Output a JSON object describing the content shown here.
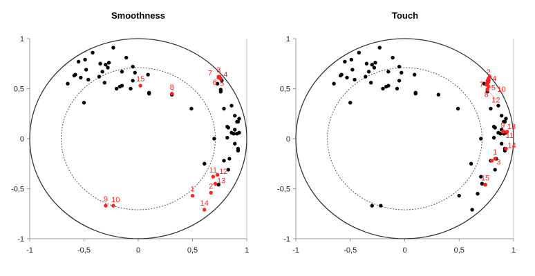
{
  "chart_data": [
    {
      "type": "scatter",
      "title": "Smoothness",
      "xlim": [
        -1,
        1
      ],
      "ylim": [
        -1,
        1
      ],
      "x_ticks": [
        "-1",
        "-0,5",
        "0",
        "0,5",
        "1"
      ],
      "y_ticks": [
        "1",
        "0,5",
        "0",
        "-0,5",
        "-1"
      ],
      "outer_circle_radius": 1,
      "inner_circle_radius": 0.71,
      "colors": {
        "active": "#000000",
        "supplementary": "#ff2020"
      },
      "active_points": [
        [
          -0.23,
          0.91
        ],
        [
          -0.42,
          0.86
        ],
        [
          -0.49,
          0.79
        ],
        [
          -0.55,
          0.77
        ],
        [
          -0.27,
          0.76
        ],
        [
          -0.35,
          0.75
        ],
        [
          -0.3,
          0.74
        ],
        [
          -0.28,
          0.71
        ],
        [
          -0.11,
          0.81
        ],
        [
          -0.05,
          0.72
        ],
        [
          -0.48,
          0.69
        ],
        [
          -0.33,
          0.67
        ],
        [
          -0.58,
          0.64
        ],
        [
          -0.59,
          0.63
        ],
        [
          -0.53,
          0.61
        ],
        [
          -0.46,
          0.59
        ],
        [
          -0.36,
          0.62
        ],
        [
          -0.15,
          0.67
        ],
        [
          -0.03,
          0.66
        ],
        [
          0.09,
          0.64
        ],
        [
          -0.65,
          0.55
        ],
        [
          -0.31,
          0.56
        ],
        [
          -0.15,
          0.53
        ],
        [
          -0.17,
          0.52
        ],
        [
          -0.2,
          0.5
        ],
        [
          -0.07,
          0.5
        ],
        [
          -0.05,
          0.58
        ],
        [
          0.1,
          0.46
        ],
        [
          0.1,
          0.45
        ],
        [
          0.31,
          0.44
        ],
        [
          -0.5,
          0.36
        ],
        [
          0.49,
          0.3
        ],
        [
          0.7,
          0.0
        ],
        [
          0.61,
          -0.25
        ],
        [
          0.79,
          -0.22
        ],
        [
          0.84,
          -0.2
        ],
        [
          0.83,
          -0.31
        ],
        [
          0.74,
          -0.46
        ],
        [
          0.73,
          0.55
        ],
        [
          0.77,
          0.58
        ],
        [
          0.76,
          0.49
        ],
        [
          0.76,
          0.47
        ],
        [
          0.79,
          0.3
        ],
        [
          0.86,
          0.33
        ],
        [
          0.89,
          0.23
        ],
        [
          0.93,
          0.2
        ],
        [
          0.91,
          0.17
        ],
        [
          0.92,
          0.17
        ],
        [
          0.82,
          0.12
        ],
        [
          0.83,
          0.11
        ],
        [
          0.86,
          0.06
        ],
        [
          0.89,
          0.09
        ],
        [
          0.91,
          0.05
        ],
        [
          0.93,
          0.06
        ],
        [
          0.88,
          0.05
        ],
        [
          0.82,
          0.01
        ],
        [
          0.89,
          -0.05
        ],
        [
          0.92,
          -0.1
        ],
        [
          0.92,
          -0.12
        ]
      ],
      "supplementary_points": [
        {
          "label": "1",
          "x": 0.5,
          "y": -0.57
        },
        {
          "label": "2",
          "x": 0.67,
          "y": -0.54
        },
        {
          "label": "3",
          "x": 0.74,
          "y": 0.62
        },
        {
          "label": "4",
          "x": 0.75,
          "y": 0.61
        },
        {
          "label": "5",
          "x": 0.75,
          "y": 0.62
        },
        {
          "label": "6",
          "x": 0.76,
          "y": 0.6
        },
        {
          "label": "7",
          "x": 0.74,
          "y": 0.61
        },
        {
          "label": "8",
          "x": 0.31,
          "y": 0.45
        },
        {
          "label": "9",
          "x": -0.3,
          "y": -0.67
        },
        {
          "label": "10",
          "x": -0.23,
          "y": -0.67
        },
        {
          "label": "11",
          "x": 0.69,
          "y": -0.38
        },
        {
          "label": "12",
          "x": 0.73,
          "y": -0.36
        },
        {
          "label": "13",
          "x": 0.71,
          "y": -0.45
        },
        {
          "label": "14",
          "x": 0.61,
          "y": -0.71
        },
        {
          "label": "15",
          "x": 0.02,
          "y": 0.53
        }
      ]
    },
    {
      "type": "scatter",
      "title": "Touch",
      "xlim": [
        -1,
        1
      ],
      "ylim": [
        -1,
        1
      ],
      "x_ticks": [
        "-1",
        "-0,5",
        "0",
        "0,5",
        "1"
      ],
      "y_ticks": [
        "1",
        "0,5",
        "0",
        "-0,5",
        "-1"
      ],
      "outer_circle_radius": 1,
      "inner_circle_radius": 0.71,
      "colors": {
        "active": "#000000",
        "supplementary": "#ff2020"
      },
      "active_points": [
        [
          -0.23,
          0.91
        ],
        [
          -0.42,
          0.86
        ],
        [
          -0.49,
          0.79
        ],
        [
          -0.55,
          0.77
        ],
        [
          -0.27,
          0.76
        ],
        [
          -0.35,
          0.75
        ],
        [
          -0.3,
          0.74
        ],
        [
          -0.28,
          0.71
        ],
        [
          -0.11,
          0.81
        ],
        [
          -0.05,
          0.72
        ],
        [
          -0.48,
          0.69
        ],
        [
          -0.33,
          0.67
        ],
        [
          -0.58,
          0.64
        ],
        [
          -0.59,
          0.63
        ],
        [
          -0.53,
          0.61
        ],
        [
          -0.46,
          0.59
        ],
        [
          -0.36,
          0.62
        ],
        [
          -0.15,
          0.67
        ],
        [
          -0.03,
          0.66
        ],
        [
          0.09,
          0.64
        ],
        [
          -0.65,
          0.55
        ],
        [
          -0.31,
          0.56
        ],
        [
          -0.15,
          0.53
        ],
        [
          -0.17,
          0.52
        ],
        [
          -0.2,
          0.5
        ],
        [
          -0.07,
          0.5
        ],
        [
          -0.05,
          0.58
        ],
        [
          0.1,
          0.46
        ],
        [
          0.1,
          0.45
        ],
        [
          0.31,
          0.44
        ],
        [
          -0.5,
          0.36
        ],
        [
          0.49,
          0.3
        ],
        [
          0.7,
          0.0
        ],
        [
          0.61,
          -0.25
        ],
        [
          0.79,
          -0.22
        ],
        [
          0.84,
          -0.2
        ],
        [
          0.83,
          -0.31
        ],
        [
          0.74,
          -0.46
        ],
        [
          0.73,
          0.55
        ],
        [
          0.77,
          0.58
        ],
        [
          0.76,
          0.49
        ],
        [
          0.76,
          0.47
        ],
        [
          0.79,
          0.3
        ],
        [
          0.86,
          0.33
        ],
        [
          0.89,
          0.23
        ],
        [
          0.93,
          0.2
        ],
        [
          0.91,
          0.17
        ],
        [
          0.92,
          0.17
        ],
        [
          0.82,
          0.12
        ],
        [
          0.83,
          0.11
        ],
        [
          0.86,
          0.06
        ],
        [
          0.89,
          0.09
        ],
        [
          0.91,
          0.05
        ],
        [
          0.93,
          0.06
        ],
        [
          0.88,
          0.05
        ],
        [
          0.82,
          0.01
        ],
        [
          0.89,
          -0.05
        ],
        [
          0.92,
          -0.1
        ],
        [
          0.92,
          -0.12
        ],
        [
          0.5,
          -0.57
        ],
        [
          0.62,
          -0.71
        ],
        [
          0.67,
          -0.55
        ],
        [
          0.71,
          -0.45
        ],
        [
          0.7,
          -0.38
        ],
        [
          -0.3,
          -0.67
        ],
        [
          -0.22,
          -0.67
        ]
      ],
      "supplementary_points": [
        {
          "label": "1",
          "x": 0.83,
          "y": -0.2
        },
        {
          "label": "2",
          "x": 0.77,
          "y": 0.6
        },
        {
          "label": "3",
          "x": 0.8,
          "y": -0.22
        },
        {
          "label": "4",
          "x": 0.77,
          "y": 0.57
        },
        {
          "label": "5",
          "x": 0.76,
          "y": 0.55
        },
        {
          "label": "6",
          "x": 0.78,
          "y": 0.62
        },
        {
          "label": "7",
          "x": 0.76,
          "y": 0.58
        },
        {
          "label": "8",
          "x": 0.75,
          "y": 0.54
        },
        {
          "label": "9",
          "x": 0.9,
          "y": 0.07
        },
        {
          "label": "10",
          "x": 0.77,
          "y": 0.52
        },
        {
          "label": "11",
          "x": 0.91,
          "y": 0.07
        },
        {
          "label": "12",
          "x": 0.76,
          "y": 0.49
        },
        {
          "label": "13",
          "x": 0.94,
          "y": 0.07
        },
        {
          "label": "14",
          "x": 0.93,
          "y": -0.1
        },
        {
          "label": "15",
          "x": 0.74,
          "y": -0.46
        }
      ]
    }
  ]
}
